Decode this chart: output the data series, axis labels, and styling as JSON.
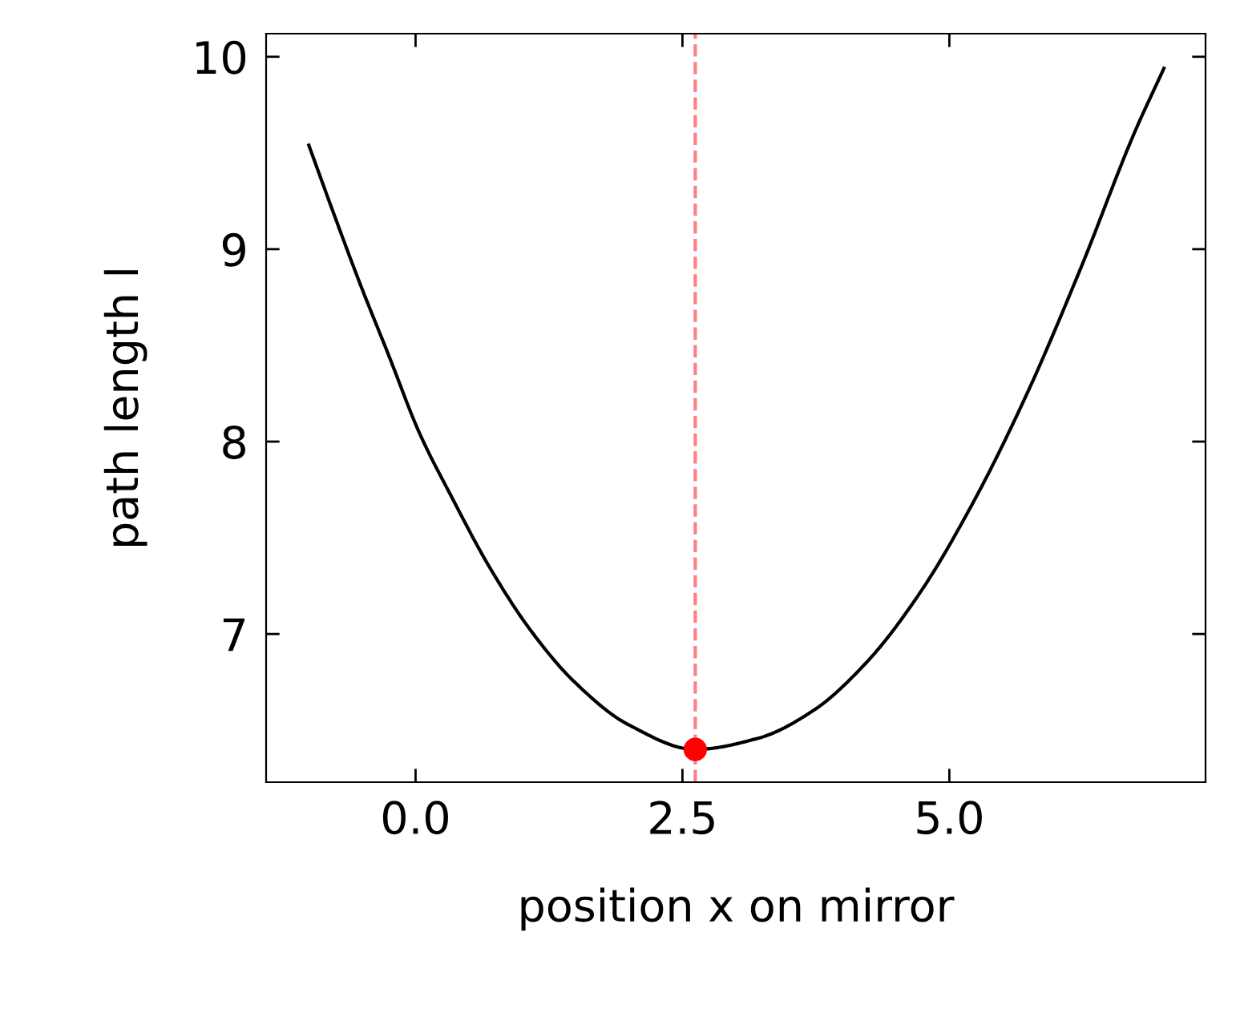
{
  "chart_data": {
    "type": "line",
    "xlabel": "position x on mirror",
    "ylabel": "path length l",
    "xlim": [
      -1.4,
      7.4
    ],
    "ylim": [
      6.23,
      10.12
    ],
    "xticks": [
      {
        "value": 0,
        "label": "0.0"
      },
      {
        "value": 2.5,
        "label": "2.5"
      },
      {
        "value": 5,
        "label": "5.0"
      }
    ],
    "yticks": [
      7,
      8,
      9,
      10
    ],
    "grid": false,
    "legend": false,
    "series": [
      {
        "color": "#000000",
        "x": [
          -1.0,
          -0.77,
          -0.52,
          -0.26,
          0.04,
          0.34,
          0.69,
          1.09,
          1.49,
          1.99,
          2.62,
          3.22,
          3.72,
          4.22,
          4.72,
          5.22,
          5.72,
          6.23,
          6.73,
          7.01
        ],
        "values": [
          9.54,
          9.19,
          8.82,
          8.46,
          8.04,
          7.71,
          7.35,
          7.01,
          6.75,
          6.53,
          6.4,
          6.46,
          6.6,
          6.85,
          7.21,
          7.68,
          8.24,
          8.9,
          9.6,
          9.94
        ]
      },
      {
        "type": "scatter",
        "color": "#ff0000",
        "marker": "circle",
        "x": [
          2.62
        ],
        "values": [
          6.4
        ]
      }
    ],
    "ref_lines": [
      {
        "axis": "x",
        "value": 2.62,
        "color": "#ff8080",
        "line_style": "dashed"
      }
    ]
  }
}
